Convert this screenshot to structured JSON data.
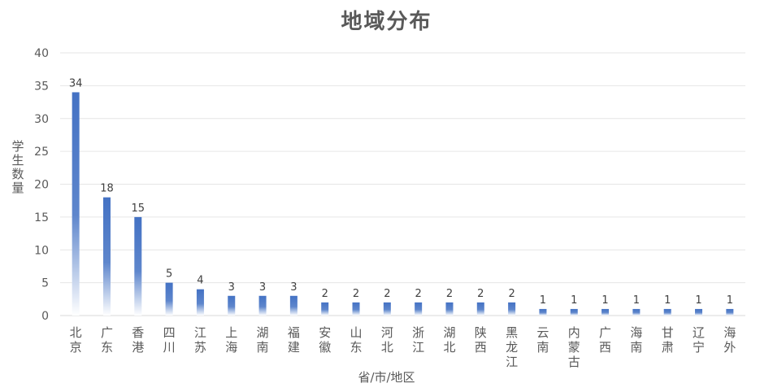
{
  "chart_data": {
    "type": "bar",
    "title": "地域分布",
    "xlabel": "省/市/地区",
    "ylabel": "学生数量",
    "ylim": [
      0,
      40
    ],
    "yticks": [
      0,
      5,
      10,
      15,
      20,
      25,
      30,
      35,
      40
    ],
    "grid": true,
    "categories": [
      "北京",
      "广东",
      "香港",
      "四川",
      "江苏",
      "上海",
      "湖南",
      "福建",
      "安徽",
      "山东",
      "河北",
      "浙江",
      "湖北",
      "陕西",
      "黑龙江",
      "云南",
      "内蒙古",
      "广西",
      "海南",
      "甘肃",
      "辽宁",
      "海外"
    ],
    "values": [
      34,
      18,
      15,
      5,
      4,
      3,
      3,
      3,
      2,
      2,
      2,
      2,
      2,
      2,
      2,
      1,
      1,
      1,
      1,
      1,
      1,
      1
    ],
    "bar_color": "#4472C4"
  }
}
